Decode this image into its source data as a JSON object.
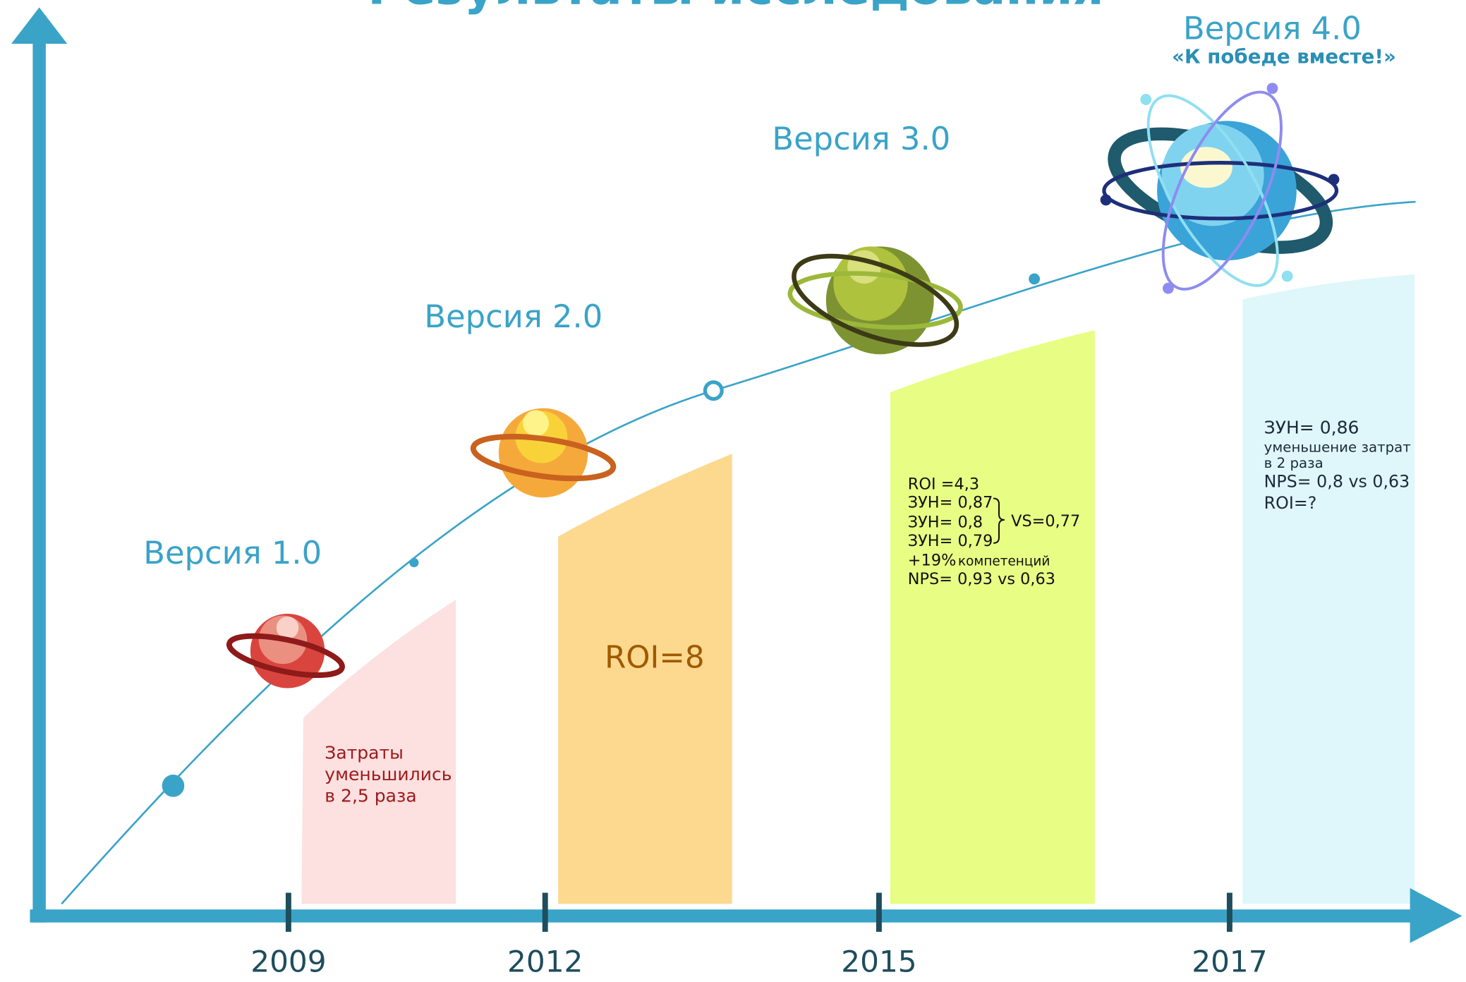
{
  "title": "Результаты исследования",
  "subtitle": "«К победе вместе!»",
  "stages": [
    {
      "version": "Версия 1.0",
      "year": 2009,
      "notes": [
        "Затраты",
        "уменьшились",
        "в 2,5 раза"
      ]
    },
    {
      "version": "Версия 2.0",
      "year": 2012,
      "notes": [
        "ROI=8"
      ]
    },
    {
      "version": "Версия 3.0",
      "year": 2015,
      "notes": [
        "ROI =4,3",
        "ЗУН= 0,87",
        "ЗУН= 0,8",
        "ЗУН= 0,79",
        "VS=0,77",
        "+19%",
        "компетенций",
        "NPS= 0,93 vs 0,63"
      ]
    },
    {
      "version": "Версия 4.0",
      "year": 2017,
      "notes": [
        "ЗУН= 0,86",
        "уменьшение затрат",
        "в 2 раза",
        "NPS= 0,8 vs 0,63",
        "ROI=?"
      ]
    }
  ]
}
